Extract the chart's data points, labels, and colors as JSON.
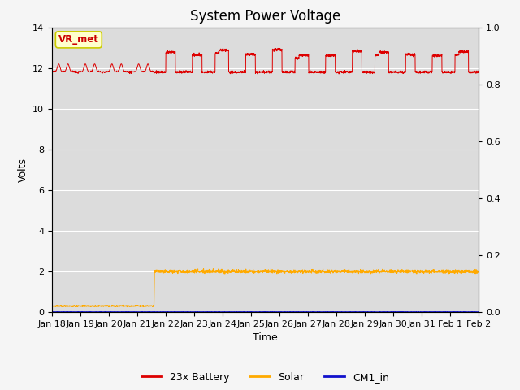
{
  "title": "System Power Voltage",
  "xlabel": "Time",
  "ylabel": "Volts",
  "bg_color": "#dcdcdc",
  "fig_bg_color": "#f5f5f5",
  "annotation_text": "VR_met",
  "annotation_bg": "#ffffcc",
  "annotation_border": "#cccc00",
  "annotation_text_color": "#cc0000",
  "xlim_start": 0,
  "xlim_end": 16,
  "ylim_left": [
    0,
    14
  ],
  "ylim_right": [
    0.0,
    1.0
  ],
  "xtick_labels": [
    "Jan 18",
    "Jan 19",
    "Jan 20",
    "Jan 21",
    "Jan 22",
    "Jan 23",
    "Jan 24",
    "Jan 25",
    "Jan 26",
    "Jan 27",
    "Jan 28",
    "Jan 29",
    "Jan 30",
    "Jan 31",
    "Feb 1",
    "Feb 2"
  ],
  "yticks_left": [
    0,
    2,
    4,
    6,
    8,
    10,
    12,
    14
  ],
  "yticks_right": [
    0.0,
    0.2,
    0.4,
    0.6,
    0.8,
    1.0
  ],
  "legend_labels": [
    "23x Battery",
    "Solar",
    "CM1_in"
  ],
  "legend_colors": [
    "#dd0000",
    "#ffaa00",
    "#1111cc"
  ],
  "line_battery_color": "#dd0000",
  "line_solar_color": "#ffaa00",
  "line_cm1_color": "#1111cc",
  "grid_color": "#ffffff",
  "title_fontsize": 12,
  "axis_fontsize": 9,
  "tick_fontsize": 8
}
